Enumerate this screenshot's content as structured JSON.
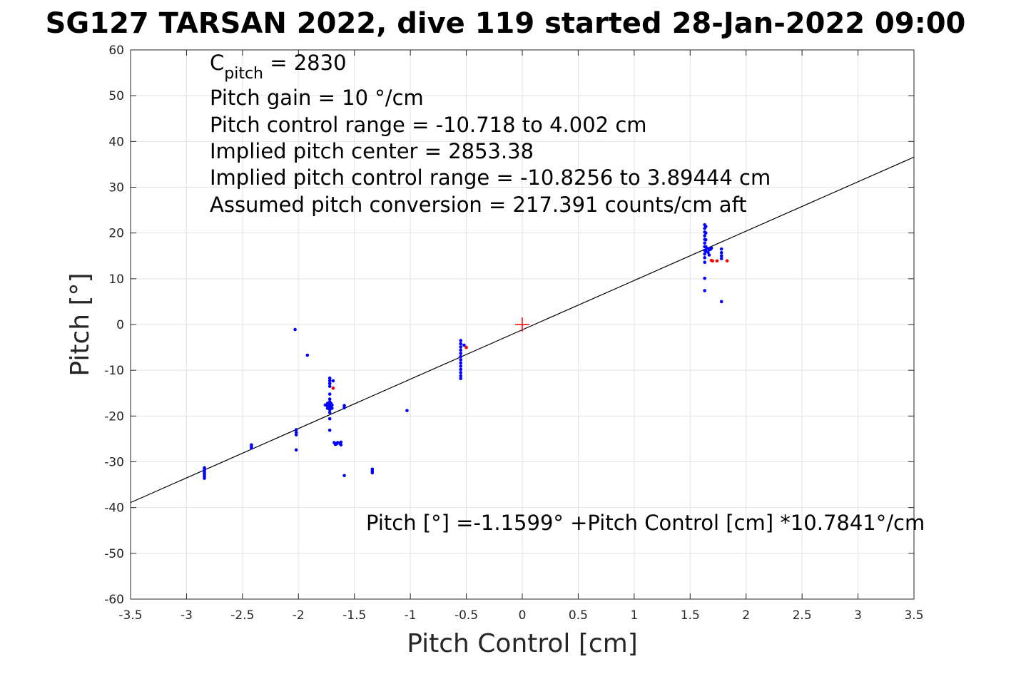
{
  "chart_data": {
    "type": "scatter",
    "title": "SG127 TARSAN 2022, dive 119 started 28-Jan-2022 09:00",
    "xlabel": "Pitch Control [cm]",
    "ylabel": "Pitch [°]",
    "xlim": [
      -3.5,
      3.5
    ],
    "ylim": [
      -60,
      60
    ],
    "xticks": [
      -3.5,
      -3,
      -2.5,
      -2,
      -1.5,
      -1,
      -0.5,
      0,
      0.5,
      1,
      1.5,
      2,
      2.5,
      3,
      3.5
    ],
    "xtick_labels": [
      "-3.5",
      "-3",
      "-2.5",
      "-2",
      "-1.5",
      "-1",
      "-0.5",
      "0",
      "0.5",
      "1",
      "1.5",
      "2",
      "2.5",
      "3",
      "3.5"
    ],
    "yticks": [
      -60,
      -50,
      -40,
      -30,
      -20,
      -10,
      0,
      10,
      20,
      30,
      40,
      50,
      60
    ],
    "ytick_labels": [
      "-60",
      "-50",
      "-40",
      "-30",
      "-20",
      "-10",
      "0",
      "10",
      "20",
      "30",
      "40",
      "50",
      "60"
    ],
    "grid": true,
    "annotations": {
      "cpitch_main": "C",
      "cpitch_sub": "pitch",
      "cpitch_rest": " = 2830",
      "line2": "Pitch gain = 10 °/cm",
      "line3": "Pitch control range = -10.718 to 4.002 cm",
      "line4": "Implied pitch center = 2853.38",
      "line5": "Implied pitch control range = -10.8256 to 3.89444 cm",
      "line6": "Assumed pitch conversion = 217.391 counts/cm aft",
      "fit_text": "Pitch [°] =-1.1599° +Pitch Control [cm] *10.7841°/cm"
    },
    "fit_line": {
      "intercept": -1.1599,
      "slope": 10.7841,
      "color": "#000000"
    },
    "center_marker": {
      "x": 0,
      "y": 0,
      "color": "#ff0000"
    },
    "series": [
      {
        "color": "#0000ff",
        "points": [
          [
            -2.84,
            -31.6
          ],
          [
            -2.84,
            -32.0
          ],
          [
            -2.84,
            -32.4
          ],
          [
            -2.84,
            -32.8
          ],
          [
            -2.84,
            -33.2
          ],
          [
            -2.84,
            -33.6
          ],
          [
            -2.84,
            -31.3
          ],
          [
            -2.42,
            -26.3
          ],
          [
            -2.42,
            -26.7
          ],
          [
            -2.42,
            -27.0
          ],
          [
            -2.03,
            -1.1
          ],
          [
            -2.02,
            -23.0
          ],
          [
            -2.02,
            -23.6
          ],
          [
            -2.02,
            -24.1
          ],
          [
            -2.02,
            -27.4
          ],
          [
            -1.92,
            -6.7
          ],
          [
            -1.74,
            -17.2
          ],
          [
            -1.74,
            -17.8
          ],
          [
            -1.74,
            -18.3
          ],
          [
            -1.76,
            -17.6
          ],
          [
            -1.72,
            -11.7
          ],
          [
            -1.72,
            -12.3
          ],
          [
            -1.72,
            -12.9
          ],
          [
            -1.72,
            -13.5
          ],
          [
            -1.72,
            -15.2
          ],
          [
            -1.72,
            -16.3
          ],
          [
            -1.72,
            -16.9
          ],
          [
            -1.72,
            -17.5
          ],
          [
            -1.72,
            -18.0
          ],
          [
            -1.72,
            -18.6
          ],
          [
            -1.72,
            -19.2
          ],
          [
            -1.72,
            -20.6
          ],
          [
            -1.72,
            -23.1
          ],
          [
            -1.71,
            -17.2
          ],
          [
            -1.71,
            -18.1
          ],
          [
            -1.7,
            -17.6
          ],
          [
            -1.7,
            -18.3
          ],
          [
            -1.69,
            -12.3
          ],
          [
            -1.68,
            -25.8
          ],
          [
            -1.67,
            -26.2
          ],
          [
            -1.66,
            -26.1
          ],
          [
            -1.65,
            -25.8
          ],
          [
            -1.63,
            -26.0
          ],
          [
            -1.62,
            -25.7
          ],
          [
            -1.62,
            -26.3
          ],
          [
            -1.59,
            -17.7
          ],
          [
            -1.59,
            -18.2
          ],
          [
            -1.59,
            -33.0
          ],
          [
            -1.34,
            -31.6
          ],
          [
            -1.34,
            -32.0
          ],
          [
            -1.34,
            -32.4
          ],
          [
            -1.03,
            -18.8
          ],
          [
            -0.55,
            -3.5
          ],
          [
            -0.55,
            -4.2
          ],
          [
            -0.55,
            -4.9
          ],
          [
            -0.55,
            -5.6
          ],
          [
            -0.55,
            -6.3
          ],
          [
            -0.55,
            -7.0
          ],
          [
            -0.55,
            -7.7
          ],
          [
            -0.55,
            -8.4
          ],
          [
            -0.55,
            -9.1
          ],
          [
            -0.55,
            -9.8
          ],
          [
            -0.55,
            -10.5
          ],
          [
            -0.55,
            -11.2
          ],
          [
            -0.55,
            -11.8
          ],
          [
            -0.52,
            -4.5
          ],
          [
            1.63,
            21.8
          ],
          [
            1.63,
            21.0
          ],
          [
            1.63,
            20.2
          ],
          [
            1.63,
            19.4
          ],
          [
            1.63,
            18.6
          ],
          [
            1.63,
            17.8
          ],
          [
            1.63,
            17.0
          ],
          [
            1.63,
            16.2
          ],
          [
            1.63,
            15.4
          ],
          [
            1.63,
            14.6
          ],
          [
            1.63,
            13.6
          ],
          [
            1.63,
            10.1
          ],
          [
            1.63,
            7.4
          ],
          [
            1.64,
            21.4
          ],
          [
            1.64,
            20.0
          ],
          [
            1.64,
            18.5
          ],
          [
            1.64,
            17.0
          ],
          [
            1.64,
            16.0
          ],
          [
            1.65,
            16.6
          ],
          [
            1.66,
            15.8
          ],
          [
            1.67,
            16.4
          ],
          [
            1.67,
            15.2
          ],
          [
            1.68,
            16.4
          ],
          [
            1.69,
            16.7
          ],
          [
            1.78,
            16.5
          ],
          [
            1.78,
            15.7
          ],
          [
            1.78,
            15.0
          ],
          [
            1.78,
            14.4
          ],
          [
            1.78,
            5.0
          ]
        ]
      },
      {
        "color": "#ff0000",
        "points": [
          [
            -1.69,
            -13.9
          ],
          [
            -0.5,
            -5.0
          ],
          [
            1.69,
            14.0
          ],
          [
            1.7,
            13.9
          ],
          [
            1.74,
            13.9
          ],
          [
            1.83,
            13.9
          ]
        ]
      }
    ]
  }
}
